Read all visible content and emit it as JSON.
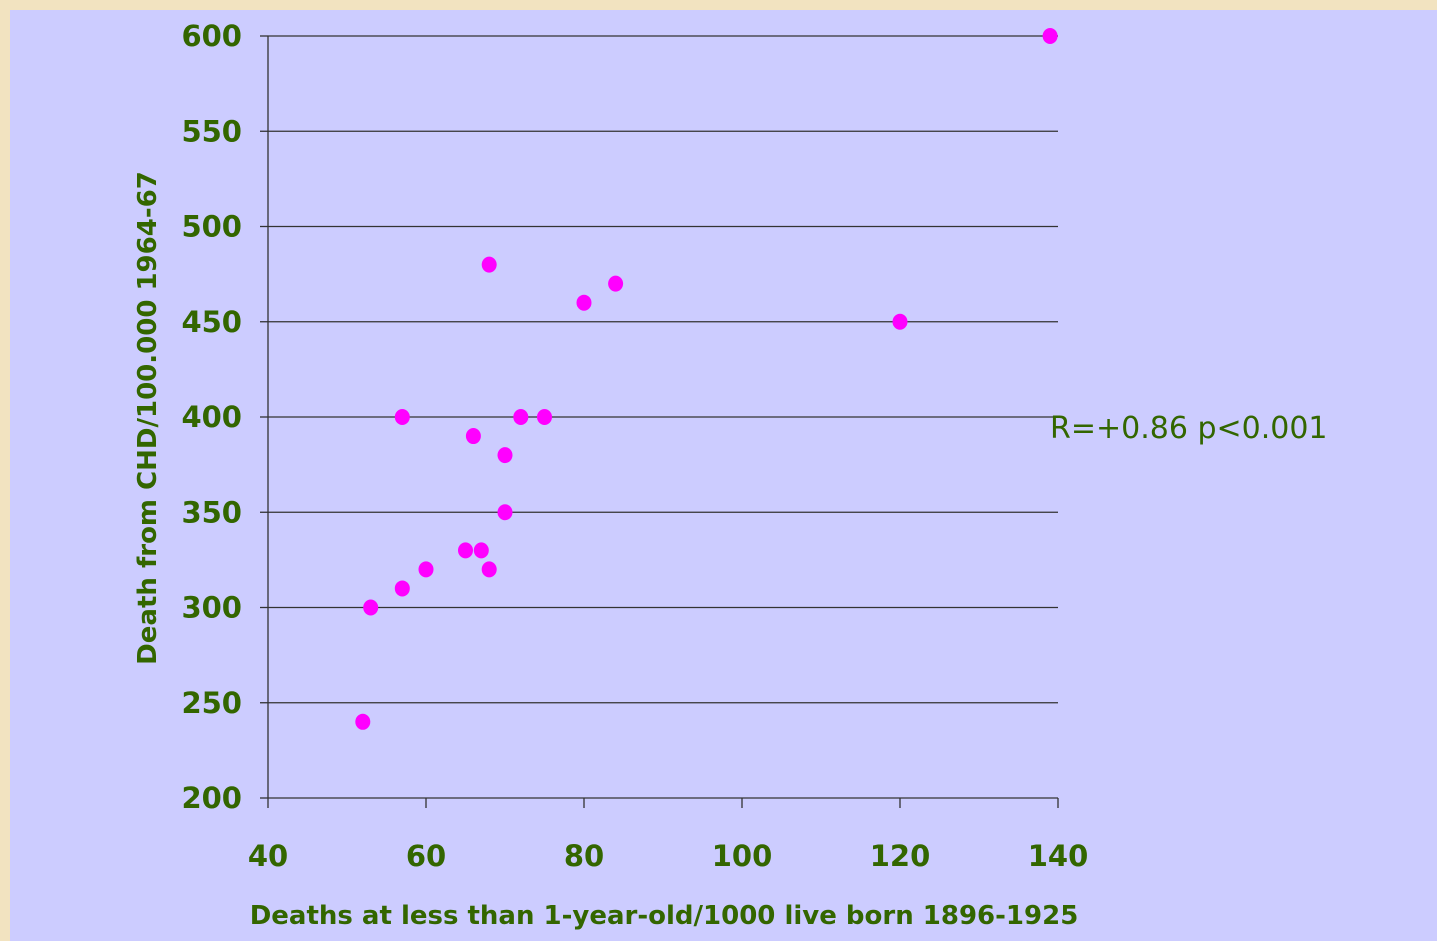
{
  "colors": {
    "background": "#ccccff",
    "frame": "#f2e3c0",
    "text": "#336600",
    "points": "#ff00ff",
    "gridline": "#333333"
  },
  "chart_data": {
    "type": "scatter",
    "title": "",
    "xlabel": "Deaths at less than 1-year-old/1000 live born 1896-1925",
    "ylabel": "Death from CHD/100.000 1964-67",
    "xlim": [
      40,
      140
    ],
    "ylim": [
      200,
      600
    ],
    "xticks": [
      40,
      60,
      80,
      100,
      120,
      140
    ],
    "yticks": [
      200,
      250,
      300,
      350,
      400,
      450,
      500,
      550,
      600
    ],
    "grid": "horizontal",
    "legend": "none",
    "annotation": "R=+0.86 p<0.001",
    "x": [
      52,
      53,
      57,
      57,
      60,
      65,
      66,
      67,
      68,
      68,
      70,
      70,
      72,
      75,
      80,
      84,
      120,
      139
    ],
    "y": [
      240,
      300,
      310,
      400,
      320,
      330,
      390,
      330,
      320,
      480,
      350,
      380,
      400,
      400,
      460,
      470,
      450,
      600
    ]
  }
}
